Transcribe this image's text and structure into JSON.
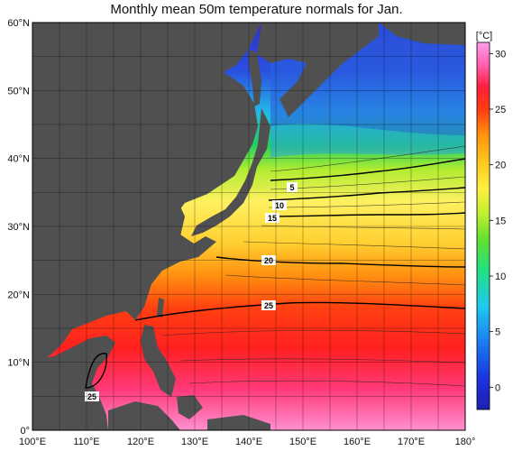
{
  "title": "Monthly mean 50m temperature normals for Jan.",
  "map": {
    "lon_ticks": [
      "100°E",
      "110°E",
      "120°E",
      "130°E",
      "140°E",
      "150°E",
      "160°E",
      "170°E",
      "180°"
    ],
    "lat_ticks": [
      "0°",
      "10°N",
      "20°N",
      "30°N",
      "40°N",
      "50°N",
      "60°N"
    ],
    "lon_range": [
      100,
      180
    ],
    "lat_range": [
      0,
      60
    ],
    "land_color": "#505050",
    "isotherm_labels": [
      "5",
      "10",
      "15",
      "20",
      "25",
      "25"
    ]
  },
  "colorbar": {
    "unit": "[°C]",
    "ticks": [
      "0",
      "5",
      "10",
      "15",
      "20",
      "25",
      "30"
    ],
    "range": [
      -2,
      31
    ],
    "colors": [
      "#1a1ad0",
      "#2a5cf0",
      "#1aa8ff",
      "#22e8d8",
      "#20e050",
      "#9aea20",
      "#fff040",
      "#ffd020",
      "#ff9010",
      "#ff3010",
      "#ff2a6a",
      "#ff8ad0",
      "#ff9ae6"
    ]
  }
}
